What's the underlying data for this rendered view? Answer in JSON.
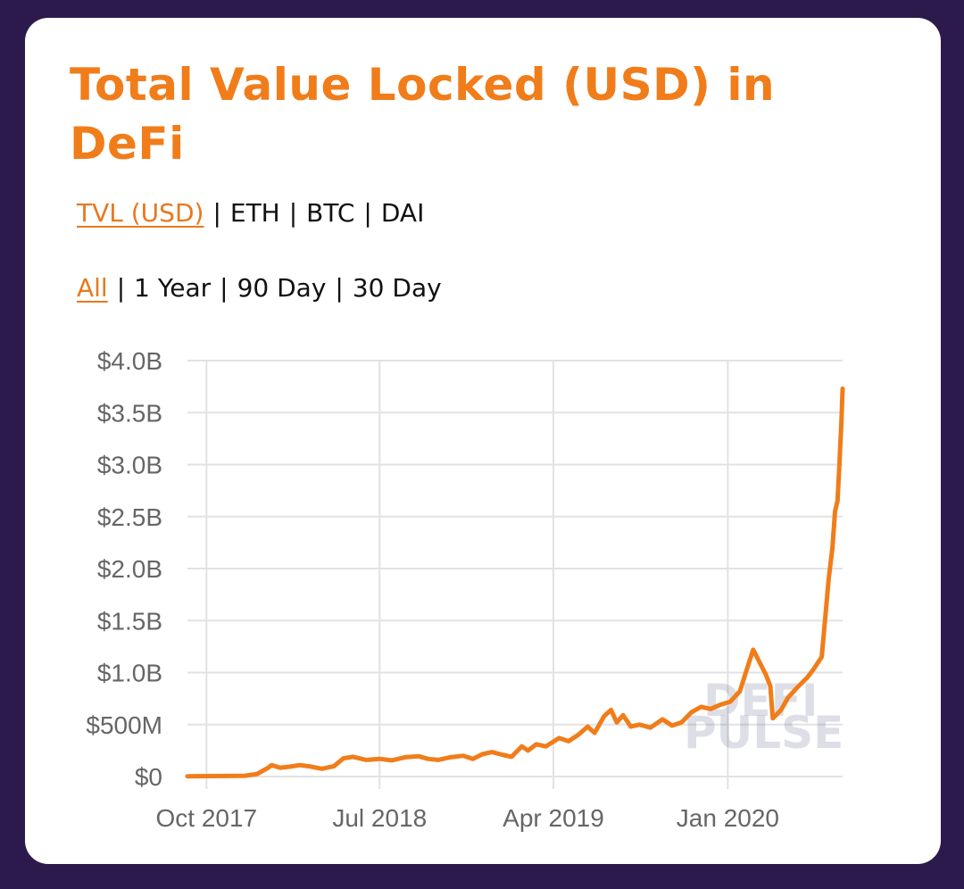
{
  "title": "Total Value Locked (USD) in DeFi",
  "unit_options": [
    {
      "label": "TVL (USD)",
      "active": true
    },
    {
      "label": "ETH",
      "active": false
    },
    {
      "label": "BTC",
      "active": false
    },
    {
      "label": "DAI",
      "active": false
    }
  ],
  "range_options": [
    {
      "label": "All",
      "active": true
    },
    {
      "label": "1 Year",
      "active": false
    },
    {
      "label": "90 Day",
      "active": false
    },
    {
      "label": "30 Day",
      "active": false
    }
  ],
  "separator": "|",
  "watermark": [
    "DEFI",
    "PULSE"
  ],
  "colors": {
    "line": "#f07d1a",
    "title": "#f07d1a",
    "grid": "#e2e2e2",
    "background": "#2c1a4d"
  },
  "chart_data": {
    "type": "line",
    "x_start": "2017-09-01",
    "x_end": "2020-06-30",
    "ylim": [
      0,
      4000000000
    ],
    "y_ticks": [
      {
        "value": 0,
        "label": "$0"
      },
      {
        "value": 500000000,
        "label": "$500M"
      },
      {
        "value": 1000000000,
        "label": "$1.0B"
      },
      {
        "value": 1500000000,
        "label": "$1.5B"
      },
      {
        "value": 2000000000,
        "label": "$2.0B"
      },
      {
        "value": 2500000000,
        "label": "$2.5B"
      },
      {
        "value": 3000000000,
        "label": "$3.0B"
      },
      {
        "value": 3500000000,
        "label": "$3.5B"
      },
      {
        "value": 4000000000,
        "label": "$4.0B"
      }
    ],
    "x_ticks": [
      {
        "date": "2017-10-01",
        "label": "Oct 2017"
      },
      {
        "date": "2018-07-01",
        "label": "Jul 2018"
      },
      {
        "date": "2019-04-01",
        "label": "Apr 2019"
      },
      {
        "date": "2020-01-01",
        "label": "Jan 2020"
      }
    ],
    "series": [
      {
        "points": [
          [
            "2017-09-01",
            3000000
          ],
          [
            "2017-10-01",
            4000000
          ],
          [
            "2017-11-01",
            5000000
          ],
          [
            "2017-12-01",
            8000000
          ],
          [
            "2017-12-20",
            25000000
          ],
          [
            "2018-01-05",
            80000000
          ],
          [
            "2018-01-12",
            110000000
          ],
          [
            "2018-01-25",
            85000000
          ],
          [
            "2018-02-10",
            95000000
          ],
          [
            "2018-02-25",
            110000000
          ],
          [
            "2018-03-15",
            95000000
          ],
          [
            "2018-04-01",
            75000000
          ],
          [
            "2018-04-20",
            100000000
          ],
          [
            "2018-05-05",
            175000000
          ],
          [
            "2018-05-20",
            190000000
          ],
          [
            "2018-06-10",
            160000000
          ],
          [
            "2018-07-01",
            170000000
          ],
          [
            "2018-07-20",
            155000000
          ],
          [
            "2018-08-10",
            185000000
          ],
          [
            "2018-09-01",
            195000000
          ],
          [
            "2018-09-15",
            170000000
          ],
          [
            "2018-10-01",
            160000000
          ],
          [
            "2018-10-20",
            185000000
          ],
          [
            "2018-11-10",
            200000000
          ],
          [
            "2018-11-25",
            170000000
          ],
          [
            "2018-12-10",
            215000000
          ],
          [
            "2018-12-25",
            235000000
          ],
          [
            "2019-01-10",
            210000000
          ],
          [
            "2019-01-25",
            190000000
          ],
          [
            "2019-02-10",
            290000000
          ],
          [
            "2019-02-20",
            250000000
          ],
          [
            "2019-03-05",
            310000000
          ],
          [
            "2019-03-20",
            290000000
          ],
          [
            "2019-04-10",
            370000000
          ],
          [
            "2019-04-25",
            340000000
          ],
          [
            "2019-05-10",
            400000000
          ],
          [
            "2019-05-25",
            480000000
          ],
          [
            "2019-06-05",
            420000000
          ],
          [
            "2019-06-20",
            580000000
          ],
          [
            "2019-07-01",
            640000000
          ],
          [
            "2019-07-10",
            520000000
          ],
          [
            "2019-07-20",
            590000000
          ],
          [
            "2019-08-01",
            480000000
          ],
          [
            "2019-08-15",
            500000000
          ],
          [
            "2019-09-01",
            470000000
          ],
          [
            "2019-09-20",
            550000000
          ],
          [
            "2019-10-05",
            490000000
          ],
          [
            "2019-10-20",
            520000000
          ],
          [
            "2019-11-05",
            620000000
          ],
          [
            "2019-11-20",
            670000000
          ],
          [
            "2019-12-05",
            650000000
          ],
          [
            "2019-12-20",
            690000000
          ],
          [
            "2020-01-05",
            720000000
          ],
          [
            "2020-01-20",
            820000000
          ],
          [
            "2020-02-01",
            1050000000
          ],
          [
            "2020-02-10",
            1220000000
          ],
          [
            "2020-02-20",
            1100000000
          ],
          [
            "2020-03-01",
            980000000
          ],
          [
            "2020-03-08",
            870000000
          ],
          [
            "2020-03-12",
            560000000
          ],
          [
            "2020-03-25",
            640000000
          ],
          [
            "2020-04-05",
            760000000
          ],
          [
            "2020-04-20",
            860000000
          ],
          [
            "2020-05-05",
            950000000
          ],
          [
            "2020-05-15",
            1030000000
          ],
          [
            "2020-05-28",
            1150000000
          ],
          [
            "2020-06-03",
            1550000000
          ],
          [
            "2020-06-08",
            1900000000
          ],
          [
            "2020-06-14",
            2200000000
          ],
          [
            "2020-06-18",
            2550000000
          ],
          [
            "2020-06-22",
            2650000000
          ],
          [
            "2020-06-25",
            3000000000
          ],
          [
            "2020-06-28",
            3400000000
          ],
          [
            "2020-06-30",
            3730000000
          ]
        ]
      }
    ]
  }
}
